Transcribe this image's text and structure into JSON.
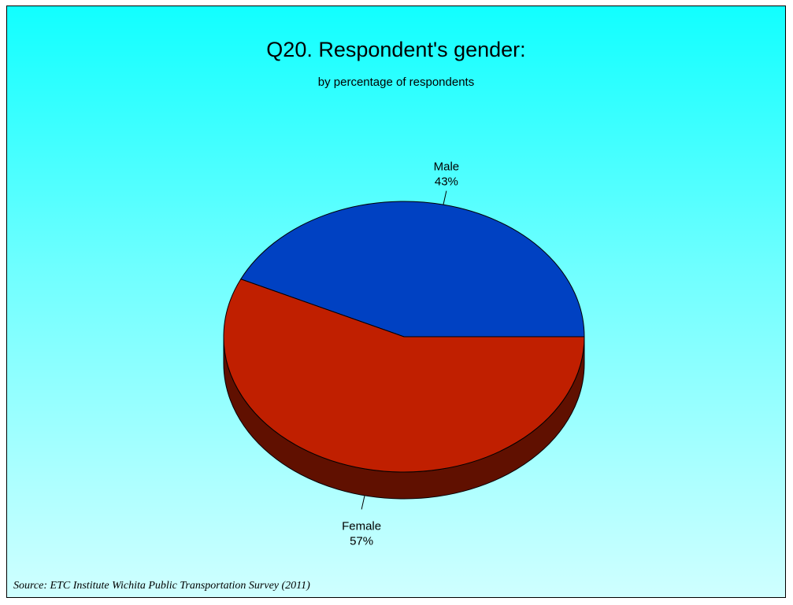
{
  "chart_data": {
    "type": "pie",
    "title": "Q20. Respondent's gender:",
    "subtitle": "by percentage of respondents",
    "slices": [
      {
        "label": "Male",
        "value": 43,
        "value_label": "43%",
        "color": "#0041c2"
      },
      {
        "label": "Female",
        "value": 57,
        "value_label": "57%",
        "color": "#c01f00"
      }
    ],
    "three_d": true,
    "legend": "none"
  },
  "source": "Source:  ETC Institute Wichita Public Transportation Survey (2011)"
}
